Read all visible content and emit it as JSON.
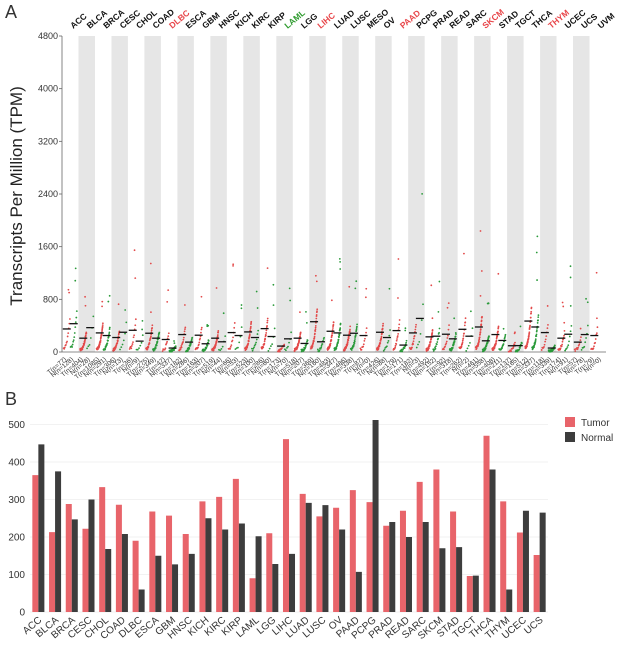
{
  "panels": {
    "a": {
      "label": "A"
    },
    "b": {
      "label": "B"
    }
  },
  "colors": {
    "tumor": "#e8646a",
    "normal": "#3d3d3d",
    "tumor_dot": "#e34a4a",
    "normal_dot": "#2a9a3a",
    "highlight_up": "#e8464a",
    "highlight_down": "#2e9b2e",
    "stripe": "#e6e6e6",
    "median": "#111111"
  },
  "chart_data": [
    {
      "type": "scatter",
      "ylabel": "Transcripts Per Million (TPM)",
      "ylim": [
        0,
        4800
      ],
      "yticks": [
        "0",
        "800",
        "1600",
        "2400",
        "3200",
        "4000",
        "4800"
      ],
      "cancers": [
        {
          "name": "ACC",
          "status": "none",
          "n_tumor": 77,
          "n_normal": 128,
          "median_tumor": 350,
          "median_normal": 430
        },
        {
          "name": "BLCA",
          "status": "none",
          "n_tumor": 404,
          "n_normal": 28,
          "median_tumor": 210,
          "median_normal": 370
        },
        {
          "name": "BRCA",
          "status": "none",
          "n_tumor": 1085,
          "n_normal": 291,
          "median_tumor": 290,
          "median_normal": 250
        },
        {
          "name": "CESC",
          "status": "none",
          "n_tumor": 306,
          "n_normal": 13,
          "median_tumor": 220,
          "median_normal": 300
        },
        {
          "name": "CHOL",
          "status": "none",
          "n_tumor": 36,
          "n_normal": 9,
          "median_tumor": 330,
          "median_normal": 165
        },
        {
          "name": "COAD",
          "status": "none",
          "n_tumor": 275,
          "n_normal": 349,
          "median_tumor": 285,
          "median_normal": 210
        },
        {
          "name": "DLBC",
          "status": "up",
          "n_tumor": 47,
          "n_normal": 337,
          "median_tumor": 190,
          "median_normal": 60
        },
        {
          "name": "ESCA",
          "status": "none",
          "n_tumor": 182,
          "n_normal": 286,
          "median_tumor": 265,
          "median_normal": 150
        },
        {
          "name": "GBM",
          "status": "none",
          "n_tumor": 163,
          "n_normal": 207,
          "median_tumor": 255,
          "median_normal": 125
        },
        {
          "name": "HNSC",
          "status": "none",
          "n_tumor": 519,
          "n_normal": 44,
          "median_tumor": 210,
          "median_normal": 155
        },
        {
          "name": "KICH",
          "status": "none",
          "n_tumor": 66,
          "n_normal": 53,
          "median_tumor": 295,
          "median_normal": 250
        },
        {
          "name": "KIRC",
          "status": "none",
          "n_tumor": 523,
          "n_normal": 100,
          "median_tumor": 305,
          "median_normal": 220
        },
        {
          "name": "KIRP",
          "status": "none",
          "n_tumor": 286,
          "n_normal": 60,
          "median_tumor": 355,
          "median_normal": 235
        },
        {
          "name": "LAML",
          "status": "down",
          "n_tumor": 173,
          "n_normal": 70,
          "median_tumor": 90,
          "median_normal": 200
        },
        {
          "name": "LGG",
          "status": "none",
          "n_tumor": 518,
          "n_normal": 207,
          "median_tumor": 210,
          "median_normal": 130
        },
        {
          "name": "LIHC",
          "status": "up",
          "n_tumor": 369,
          "n_normal": 160,
          "median_tumor": 460,
          "median_normal": 155
        },
        {
          "name": "LUAD",
          "status": "none",
          "n_tumor": 483,
          "n_normal": 347,
          "median_tumor": 315,
          "median_normal": 290
        },
        {
          "name": "LUSC",
          "status": "none",
          "n_tumor": 486,
          "n_normal": 338,
          "median_tumor": 255,
          "median_normal": 285
        },
        {
          "name": "MESO",
          "status": "none",
          "n_tumor": 87,
          "n_normal": 0,
          "median_tumor": 0,
          "median_normal": 0
        },
        {
          "name": "OV",
          "status": "none",
          "n_tumor": 426,
          "n_normal": 88,
          "median_tumor": 300,
          "median_normal": 220
        },
        {
          "name": "PAAD",
          "status": "up",
          "n_tumor": 179,
          "n_normal": 171,
          "median_tumor": 325,
          "median_normal": 105
        },
        {
          "name": "PCPG",
          "status": "none",
          "n_tumor": 182,
          "n_normal": 3,
          "median_tumor": 290,
          "median_normal": 510
        },
        {
          "name": "PRAD",
          "status": "none",
          "n_tumor": 492,
          "n_normal": 152,
          "median_tumor": 230,
          "median_normal": 240
        },
        {
          "name": "READ",
          "status": "none",
          "n_tumor": 92,
          "n_normal": 318,
          "median_tumor": 270,
          "median_normal": 200
        },
        {
          "name": "SARC",
          "status": "none",
          "n_tumor": 262,
          "n_normal": 2,
          "median_tumor": 345,
          "median_normal": 240
        },
        {
          "name": "SKCM",
          "status": "up",
          "n_tumor": 461,
          "n_normal": 558,
          "median_tumor": 380,
          "median_normal": 170
        },
        {
          "name": "STAD",
          "status": "none",
          "n_tumor": 408,
          "n_normal": 211,
          "median_tumor": 265,
          "median_normal": 175
        },
        {
          "name": "TGCT",
          "status": "none",
          "n_tumor": 137,
          "n_normal": 165,
          "median_tumor": 95,
          "median_normal": 97
        },
        {
          "name": "THCA",
          "status": "none",
          "n_tumor": 512,
          "n_normal": 337,
          "median_tumor": 470,
          "median_normal": 380
        },
        {
          "name": "THYM",
          "status": "up",
          "n_tumor": 118,
          "n_normal": 339,
          "median_tumor": 295,
          "median_normal": 60
        },
        {
          "name": "UCEC",
          "status": "none",
          "n_tumor": 174,
          "n_normal": 91,
          "median_tumor": 210,
          "median_normal": 270
        },
        {
          "name": "UCS",
          "status": "none",
          "n_tumor": 57,
          "n_normal": 78,
          "median_tumor": 150,
          "median_normal": 265
        },
        {
          "name": "UVM",
          "status": "none",
          "n_tumor": 79,
          "n_normal": 0,
          "median_tumor": 0,
          "median_normal": 0
        }
      ]
    },
    {
      "type": "bar",
      "categories": [
        "ACC",
        "BLCA",
        "BRCA",
        "CESC",
        "CHOL",
        "COAD",
        "DLBC",
        "ESCA",
        "GBM",
        "HNSC",
        "KICH",
        "KIRC",
        "KIRP",
        "LAML",
        "LGG",
        "LIHC",
        "LUAD",
        "LUSC",
        "OV",
        "PAAD",
        "PCPG",
        "PRAD",
        "READ",
        "SARC",
        "SKCM",
        "STAD",
        "TGCT",
        "THCA",
        "THYM",
        "UCEC",
        "UCS"
      ],
      "series": [
        {
          "name": "Tumor",
          "values": [
            365,
            213,
            288,
            222,
            333,
            286,
            190,
            268,
            257,
            208,
            295,
            307,
            355,
            90,
            210,
            461,
            315,
            255,
            278,
            325,
            293,
            230,
            270,
            347,
            380,
            268,
            96,
            470,
            295,
            212,
            152
          ]
        },
        {
          "name": "Normal",
          "values": [
            447,
            375,
            247,
            300,
            168,
            208,
            60,
            150,
            127,
            155,
            250,
            220,
            236,
            202,
            128,
            155,
            291,
            285,
            220,
            107,
            512,
            240,
            200,
            240,
            170,
            173,
            97,
            380,
            60,
            270,
            265
          ]
        }
      ],
      "ylim": [
        0,
        520
      ],
      "yticks": [
        "0",
        "100",
        "200",
        "300",
        "400",
        "500"
      ],
      "legend": [
        "Tumor",
        "Normal"
      ],
      "xlabel": "",
      "ylabel": ""
    }
  ]
}
